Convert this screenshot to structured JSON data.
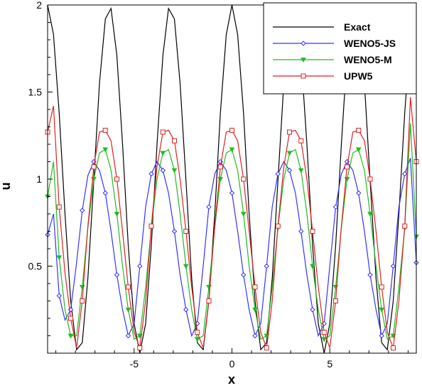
{
  "chart_data": {
    "type": "line",
    "title": "",
    "xlabel": "x",
    "ylabel": "u",
    "xlim": [
      -9.42,
      9.42
    ],
    "ylim": [
      0,
      2
    ],
    "grid": false,
    "legend_position": "top-right",
    "x_ticks": [
      -5,
      0,
      5
    ],
    "x_tick_labels": [
      "-5",
      "0",
      "5"
    ],
    "y_ticks": [
      0.5,
      1,
      1.5,
      2
    ],
    "y_tick_labels": [
      "0.5",
      "1",
      "1.5",
      "2"
    ],
    "series": [
      {
        "name": "Exact",
        "color": "#000000",
        "marker": "none",
        "x": [
          -9.42,
          -9.12,
          -8.83,
          -8.53,
          -8.24,
          -7.94,
          -7.65,
          -7.36,
          -7.06,
          -6.77,
          -6.47,
          -6.18,
          -5.88,
          -5.59,
          -5.3,
          -5.0,
          -4.71,
          -4.41,
          -4.12,
          -3.83,
          -3.53,
          -3.24,
          -2.94,
          -2.65,
          -2.35,
          -2.06,
          -1.77,
          -1.47,
          -1.18,
          -0.88,
          -0.59,
          -0.29,
          0.0,
          0.29,
          0.59,
          0.88,
          1.18,
          1.47,
          1.77,
          2.06,
          2.35,
          2.65,
          2.94,
          3.24,
          3.53,
          3.83,
          4.12,
          4.41,
          4.71,
          5.0,
          5.3,
          5.59,
          5.88,
          6.18,
          6.47,
          6.77,
          7.06,
          7.36,
          7.65,
          7.94,
          8.24,
          8.53,
          8.83,
          9.12,
          9.42
        ],
        "y": [
          2.0,
          1.83,
          1.38,
          0.8,
          0.3,
          0.02,
          0.06,
          0.43,
          0.99,
          1.55,
          1.92,
          1.98,
          1.71,
          1.2,
          0.62,
          0.17,
          0.0,
          0.17,
          0.62,
          1.2,
          1.71,
          1.98,
          1.92,
          1.55,
          0.99,
          0.43,
          0.06,
          0.02,
          0.3,
          0.8,
          1.38,
          1.83,
          2.0,
          1.83,
          1.38,
          0.8,
          0.3,
          0.02,
          0.06,
          0.43,
          0.99,
          1.55,
          1.92,
          1.98,
          1.71,
          1.2,
          0.62,
          0.17,
          0.0,
          0.17,
          0.62,
          1.2,
          1.71,
          1.98,
          1.92,
          1.55,
          0.99,
          0.43,
          0.06,
          0.02,
          0.3,
          0.8,
          1.38,
          1.83,
          2.0
        ]
      },
      {
        "name": "WENO5-JS",
        "color": "#3333ff",
        "marker": "diamond",
        "x": [
          -9.42,
          -9.12,
          -8.83,
          -8.53,
          -8.24,
          -7.94,
          -7.65,
          -7.36,
          -7.06,
          -6.77,
          -6.47,
          -6.18,
          -5.88,
          -5.59,
          -5.3,
          -5.0,
          -4.71,
          -4.41,
          -4.12,
          -3.83,
          -3.53,
          -3.24,
          -2.94,
          -2.65,
          -2.35,
          -2.06,
          -1.77,
          -1.47,
          -1.18,
          -0.88,
          -0.59,
          -0.29,
          0.0,
          0.29,
          0.59,
          0.88,
          1.18,
          1.47,
          1.77,
          2.06,
          2.35,
          2.65,
          2.94,
          3.24,
          3.53,
          3.83,
          4.12,
          4.41,
          4.71,
          5.0,
          5.3,
          5.59,
          5.88,
          6.18,
          6.47,
          6.77,
          7.06,
          7.36,
          7.65,
          7.94,
          8.24,
          8.53,
          8.83,
          9.12,
          9.42
        ],
        "y": [
          0.68,
          0.8,
          0.33,
          0.19,
          0.25,
          0.52,
          0.82,
          1.02,
          1.1,
          1.05,
          0.92,
          0.7,
          0.45,
          0.25,
          0.1,
          0.17,
          0.5,
          0.84,
          1.03,
          1.1,
          1.05,
          0.92,
          0.7,
          0.45,
          0.25,
          0.1,
          0.17,
          0.5,
          0.84,
          1.03,
          1.1,
          1.05,
          0.92,
          0.7,
          0.45,
          0.25,
          0.1,
          0.17,
          0.5,
          0.84,
          1.03,
          1.1,
          1.05,
          0.92,
          0.7,
          0.45,
          0.25,
          0.1,
          0.17,
          0.5,
          0.84,
          1.03,
          1.1,
          1.05,
          0.92,
          0.7,
          0.45,
          0.25,
          0.1,
          0.17,
          0.5,
          0.84,
          1.03,
          1.12,
          0.52
        ]
      },
      {
        "name": "WENO5-M",
        "color": "#22bb22",
        "marker": "triangle-down",
        "x": [
          -9.42,
          -9.12,
          -8.83,
          -8.53,
          -8.24,
          -7.94,
          -7.65,
          -7.36,
          -7.06,
          -6.77,
          -6.47,
          -6.18,
          -5.88,
          -5.59,
          -5.3,
          -5.0,
          -4.71,
          -4.41,
          -4.12,
          -3.83,
          -3.53,
          -3.24,
          -2.94,
          -2.65,
          -2.35,
          -2.06,
          -1.77,
          -1.47,
          -1.18,
          -0.88,
          -0.59,
          -0.29,
          0.0,
          0.29,
          0.59,
          0.88,
          1.18,
          1.47,
          1.77,
          2.06,
          2.35,
          2.65,
          2.94,
          3.24,
          3.53,
          3.83,
          4.12,
          4.41,
          4.71,
          5.0,
          5.3,
          5.59,
          5.88,
          6.18,
          6.47,
          6.77,
          7.06,
          7.36,
          7.65,
          7.94,
          8.24,
          8.53,
          8.83,
          9.12,
          9.42
        ],
        "y": [
          0.9,
          1.1,
          0.55,
          0.25,
          0.1,
          0.1,
          0.38,
          0.72,
          1.0,
          1.15,
          1.17,
          1.05,
          0.8,
          0.5,
          0.25,
          0.08,
          0.1,
          0.38,
          0.72,
          1.0,
          1.15,
          1.17,
          1.05,
          0.8,
          0.5,
          0.25,
          0.08,
          0.1,
          0.38,
          0.72,
          1.0,
          1.15,
          1.17,
          1.05,
          0.8,
          0.5,
          0.25,
          0.08,
          0.1,
          0.38,
          0.72,
          1.0,
          1.15,
          1.17,
          1.05,
          0.8,
          0.5,
          0.25,
          0.08,
          0.1,
          0.38,
          0.72,
          1.0,
          1.15,
          1.17,
          1.05,
          0.8,
          0.5,
          0.25,
          0.08,
          0.1,
          0.38,
          0.72,
          1.32,
          0.67
        ]
      },
      {
        "name": "UPW5",
        "color": "#dd2222",
        "marker": "square",
        "x": [
          -9.42,
          -9.12,
          -8.83,
          -8.53,
          -8.24,
          -7.94,
          -7.65,
          -7.36,
          -7.06,
          -6.77,
          -6.47,
          -6.18,
          -5.88,
          -5.59,
          -5.3,
          -5.0,
          -4.71,
          -4.41,
          -4.12,
          -3.83,
          -3.53,
          -3.24,
          -2.94,
          -2.65,
          -2.35,
          -2.06,
          -1.77,
          -1.47,
          -1.18,
          -0.88,
          -0.59,
          -0.29,
          0.0,
          0.29,
          0.59,
          0.88,
          1.18,
          1.47,
          1.77,
          2.06,
          2.35,
          2.65,
          2.94,
          3.24,
          3.53,
          3.83,
          4.12,
          4.41,
          4.71,
          5.0,
          5.3,
          5.59,
          5.88,
          6.18,
          6.47,
          6.77,
          7.06,
          7.36,
          7.65,
          7.94,
          8.24,
          8.53,
          8.83,
          9.12,
          9.42
        ],
        "y": [
          1.27,
          1.42,
          0.84,
          0.46,
          0.2,
          0.03,
          0.3,
          0.73,
          1.07,
          1.27,
          1.28,
          1.22,
          1.0,
          0.7,
          0.38,
          0.12,
          0.03,
          0.3,
          0.73,
          1.07,
          1.27,
          1.28,
          1.22,
          1.0,
          0.7,
          0.38,
          0.12,
          0.03,
          0.3,
          0.73,
          1.07,
          1.27,
          1.28,
          1.22,
          1.0,
          0.7,
          0.38,
          0.12,
          0.03,
          0.3,
          0.73,
          1.07,
          1.27,
          1.28,
          1.22,
          1.0,
          0.7,
          0.38,
          0.12,
          0.03,
          0.3,
          0.73,
          1.07,
          1.27,
          1.28,
          1.22,
          1.0,
          0.7,
          0.38,
          0.12,
          0.03,
          0.3,
          0.73,
          1.47,
          1.1
        ]
      }
    ]
  }
}
